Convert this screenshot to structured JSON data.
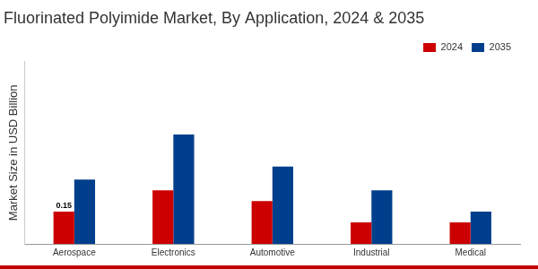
{
  "chart_data": {
    "type": "bar",
    "title": "Fluorinated Polyimide Market, By Application, 2024 & 2035",
    "y_label": "Market Size in USD Billion",
    "categories": [
      "Aerospace",
      "Electronics",
      "Automotive",
      "Industrial",
      "Medical"
    ],
    "series": [
      {
        "name": "2024",
        "color": "#cc0000",
        "values": [
          0.15,
          0.25,
          0.2,
          0.1,
          0.1
        ],
        "data_labels": true,
        "value_labels": [
          "0.15",
          null,
          null,
          null,
          null
        ]
      },
      {
        "name": "2035",
        "color": "#003f8c",
        "values": [
          0.3,
          0.51,
          0.36,
          0.25,
          0.15
        ]
      }
    ],
    "ylim": [
      0,
      0.85
    ],
    "grid": false,
    "legend": "top-right",
    "tick_labels": "x"
  }
}
